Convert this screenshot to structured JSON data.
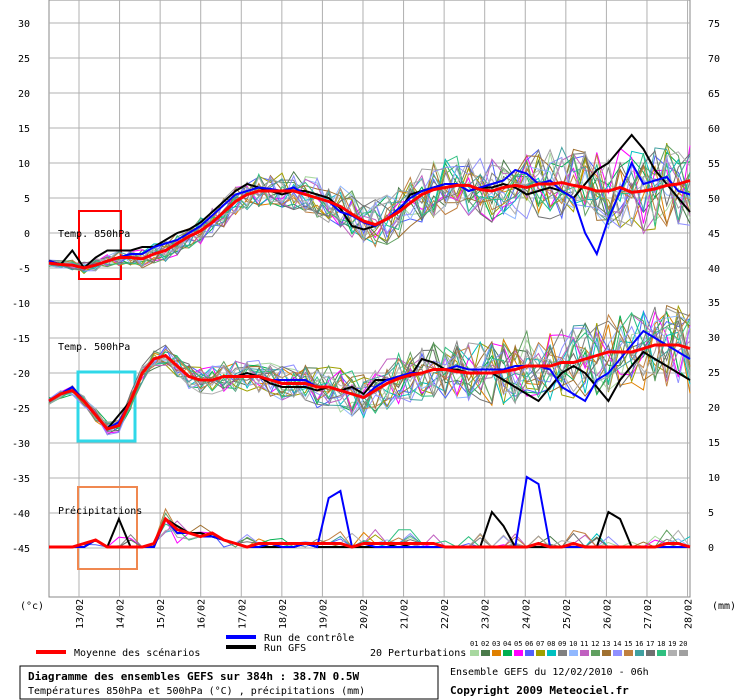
{
  "chart_data": {
    "type": "line",
    "x_dates": [
      "13/02",
      "14/02",
      "15/02",
      "16/02",
      "17/02",
      "18/02",
      "19/02",
      "20/02",
      "21/02",
      "22/02",
      "23/02",
      "24/02",
      "25/02",
      "26/02",
      "27/02",
      "28/02"
    ],
    "left_axis": {
      "unit": "(°c)",
      "ticks": [
        30,
        25,
        20,
        15,
        10,
        5,
        0,
        -5,
        -10,
        -15,
        -20,
        -25,
        -30,
        -35,
        -40,
        -45
      ],
      "range": [
        -45,
        30
      ]
    },
    "right_axis": {
      "unit": "(mm)",
      "temperature_ticks": [
        75,
        70,
        65,
        60,
        55,
        50,
        45,
        40
      ],
      "precip_ticks": [
        35,
        30,
        25,
        20,
        15,
        10,
        5,
        0
      ]
    },
    "panel_labels": {
      "t850": "Temp. 850hPa",
      "t500": "Temp. 500hPa",
      "precip": "Précipitations"
    },
    "series": [
      {
        "name": "Moyenne des scénarios",
        "color": "#ff0000",
        "t850": [
          -4.3,
          -4.5,
          -4.6,
          -5.0,
          -4.6,
          -4.0,
          -3.5,
          -3.5,
          -3.7,
          -3.0,
          -2.5,
          -1.5,
          -0.5,
          0.3,
          1.5,
          3.0,
          4.5,
          5.5,
          6.0,
          6.0,
          6.0,
          6.0,
          5.5,
          5.0,
          4.5,
          3.8,
          2.7,
          1.7,
          1.2,
          2.0,
          3.0,
          4.3,
          5.5,
          6.2,
          6.5,
          6.8,
          6.8,
          6.2,
          6.0,
          6.5,
          6.8,
          6.5,
          7.0,
          7.0,
          7.2,
          6.8,
          6.5,
          6.0,
          6.0,
          6.5,
          5.8,
          6.0,
          6.3,
          6.8,
          7.0,
          7.5
        ],
        "t500": [
          -24,
          -23,
          -22.5,
          -24,
          -26,
          -28,
          -27.5,
          -24,
          -20,
          -18,
          -17.5,
          -19,
          -20.5,
          -21,
          -21,
          -20.5,
          -20.5,
          -20.5,
          -20.5,
          -21,
          -21.5,
          -21.5,
          -21.5,
          -22,
          -22,
          -22.5,
          -23,
          -23.5,
          -22.5,
          -21.5,
          -20.8,
          -20.3,
          -20,
          -19.5,
          -19.5,
          -19.8,
          -20,
          -20,
          -20,
          -19.8,
          -19.5,
          -19,
          -19,
          -19,
          -18.5,
          -18.5,
          -18,
          -17.5,
          -17,
          -17,
          -17,
          -16.5,
          -16,
          -16,
          -16,
          -16.5
        ],
        "precip": [
          0,
          0,
          0,
          0.5,
          1,
          0,
          0,
          0,
          0,
          0.5,
          4,
          2.5,
          2,
          1.5,
          2,
          1,
          0.5,
          0,
          0.5,
          0.5,
          0.5,
          0.5,
          0.5,
          0.5,
          0.5,
          0.5,
          0,
          0.5,
          0.5,
          0.5,
          0.5,
          0.5,
          0.5,
          0.5,
          0,
          0,
          0,
          0,
          0,
          0,
          0,
          0,
          0.5,
          0,
          0,
          0.5,
          0,
          0,
          0,
          0,
          0,
          0,
          0,
          0.5,
          0.5,
          0
        ]
      },
      {
        "name": "Run de contrôle",
        "color": "#0000ff",
        "t850": [
          -4,
          -4.5,
          -4.5,
          -5,
          -4.5,
          -4,
          -3.5,
          -3,
          -3,
          -2,
          -1.5,
          -1,
          0,
          1,
          2.5,
          4,
          5.5,
          6,
          6.5,
          6.3,
          6,
          6.5,
          5.5,
          5,
          4.5,
          3,
          2.5,
          1.5,
          1,
          2,
          3.5,
          5,
          6,
          6.5,
          7,
          7,
          6,
          6.5,
          7,
          7.5,
          9,
          8.5,
          7,
          7.5,
          6,
          5,
          0,
          -3,
          2,
          6,
          10,
          7,
          7.5,
          8,
          6,
          5.5
        ],
        "t500": [
          -24,
          -23,
          -22,
          -24,
          -26,
          -28,
          -27,
          -24,
          -20,
          -18,
          -17.5,
          -19,
          -20.5,
          -21,
          -21,
          -20.5,
          -20.5,
          -20.5,
          -20.5,
          -21,
          -21,
          -21,
          -21,
          -22,
          -22,
          -22.5,
          -23,
          -23.5,
          -22,
          -21,
          -20.5,
          -20,
          -20,
          -19.5,
          -19.5,
          -19,
          -19.5,
          -19.5,
          -19.5,
          -19.5,
          -19,
          -19,
          -19,
          -19.5,
          -22,
          -23,
          -24,
          -21,
          -20,
          -18,
          -16,
          -14,
          -15,
          -16,
          -17,
          -18
        ],
        "precip": [
          0,
          0,
          0,
          0,
          1,
          0,
          0,
          0,
          0,
          0,
          4,
          2,
          2,
          1.5,
          1.5,
          1,
          0.5,
          0,
          0,
          0.5,
          0,
          0,
          0.5,
          0,
          7,
          8,
          0,
          0.5,
          0,
          0,
          0,
          0,
          0,
          0,
          0,
          0,
          0,
          0,
          0,
          0,
          0,
          10,
          9,
          0,
          0,
          0,
          0,
          0,
          0,
          0,
          0,
          0,
          0,
          0,
          0,
          0
        ]
      },
      {
        "name": "Run GFS",
        "color": "#000000",
        "t850": [
          -4,
          -4.5,
          -2.5,
          -5,
          -3.5,
          -2.5,
          -2.5,
          -2.5,
          -2,
          -2,
          -1,
          0,
          0.5,
          1.5,
          3,
          4.5,
          6,
          7,
          6.5,
          6,
          5.5,
          6,
          6,
          5.5,
          5,
          3.5,
          1,
          0.5,
          1,
          2,
          3,
          5.5,
          6,
          6.5,
          7,
          7,
          6,
          6.5,
          6.5,
          7,
          6.5,
          5.5,
          6,
          6.5,
          6,
          5,
          7,
          9,
          10,
          12,
          14,
          12,
          9,
          7,
          5,
          3
        ],
        "t500": [
          -24,
          -23,
          -22,
          -24,
          -26,
          -28,
          -26,
          -24,
          -20,
          -18,
          -17.5,
          -19,
          -20.5,
          -21,
          -21,
          -20.5,
          -20.5,
          -20,
          -20.5,
          -21.5,
          -22,
          -22,
          -22,
          -22.5,
          -22,
          -22.5,
          -22,
          -23,
          -21,
          -21,
          -20.5,
          -20.5,
          -18,
          -18.5,
          -19.5,
          -19.5,
          -20,
          -20,
          -20,
          -21,
          -22,
          -23,
          -24,
          -22,
          -20,
          -19,
          -20,
          -22,
          -24,
          -21,
          -19,
          -17,
          -18,
          -19,
          -20,
          -21
        ],
        "precip": [
          0,
          0,
          0,
          0,
          1,
          0,
          4,
          0,
          0,
          0,
          4,
          3,
          2,
          2,
          1.5,
          1,
          0.5,
          0,
          0,
          0,
          0,
          0,
          0.5,
          0,
          0,
          0,
          0,
          0,
          0,
          0,
          0.5,
          0,
          0,
          0,
          0,
          0,
          0,
          0,
          5,
          3,
          0,
          0,
          0,
          0,
          0,
          0,
          0,
          0,
          5,
          4,
          0,
          0,
          0,
          0,
          0,
          0
        ]
      }
    ],
    "perturbations_label": "20 Perturbations",
    "perturbation_ids": [
      "01",
      "02",
      "03",
      "04",
      "05",
      "06",
      "07",
      "08",
      "09",
      "10",
      "11",
      "12",
      "13",
      "14",
      "15",
      "16",
      "17",
      "18",
      "19",
      "20"
    ],
    "perturbation_colors": [
      "#a8d8a0",
      "#4a7a4a",
      "#e08000",
      "#00b050",
      "#ff00ff",
      "#5060ff",
      "#a0a000",
      "#00c0c0",
      "#808080",
      "#90b8ff",
      "#c060c0",
      "#60a060",
      "#a07030",
      "#9090ff",
      "#c08040",
      "#40a0a0",
      "#707070",
      "#30c080",
      "#b0b0b0",
      "#a0a0a0"
    ]
  },
  "legend": {
    "mean": "Moyenne des scénarios",
    "control": "Run de contrôle",
    "gfs": "Run GFS",
    "perturbations": "20 Perturbations"
  },
  "footer": {
    "title": "Diagramme des ensembles GEFS sur 384h : 38.7N 0.5W",
    "subtitle": "Températures 850hPa et 500hPa (°C) , précipitations (mm)",
    "ensemble": "Ensemble GEFS du 12/02/2010 - 06h",
    "copyright": "Copyright 2009 Meteociel.fr"
  },
  "colors": {
    "mean": "#ff0000",
    "control": "#0000ff",
    "gfs": "#000000",
    "box850": "#ff0000",
    "box500": "#30d8e8",
    "boxPrecip": "#f08850",
    "grid": "#aaaaaa"
  }
}
